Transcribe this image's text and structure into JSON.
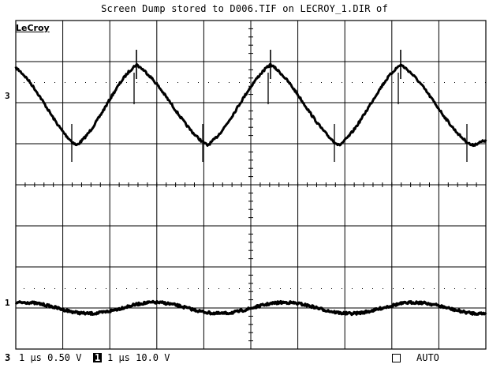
{
  "title": "Screen Dump stored to D006.TIF on LECROY_1.DIR of",
  "logo": "LeCroy",
  "channels": [
    {
      "marker": "3",
      "timebase": "1 μs",
      "volts": "0.50 V"
    },
    {
      "marker": "1",
      "timebase": "1 μs",
      "volts": "10.0 V"
    }
  ],
  "status": {
    "ch3_label": "3",
    "ch3_text": "1 μs 0.50 V",
    "ch1_label": "1",
    "ch1_text": "1 μs 10.0 V",
    "trigger_mode": "AUTO"
  },
  "colors": {
    "background": "#ffffff",
    "trace": "#000000",
    "grid": "#000000"
  }
}
